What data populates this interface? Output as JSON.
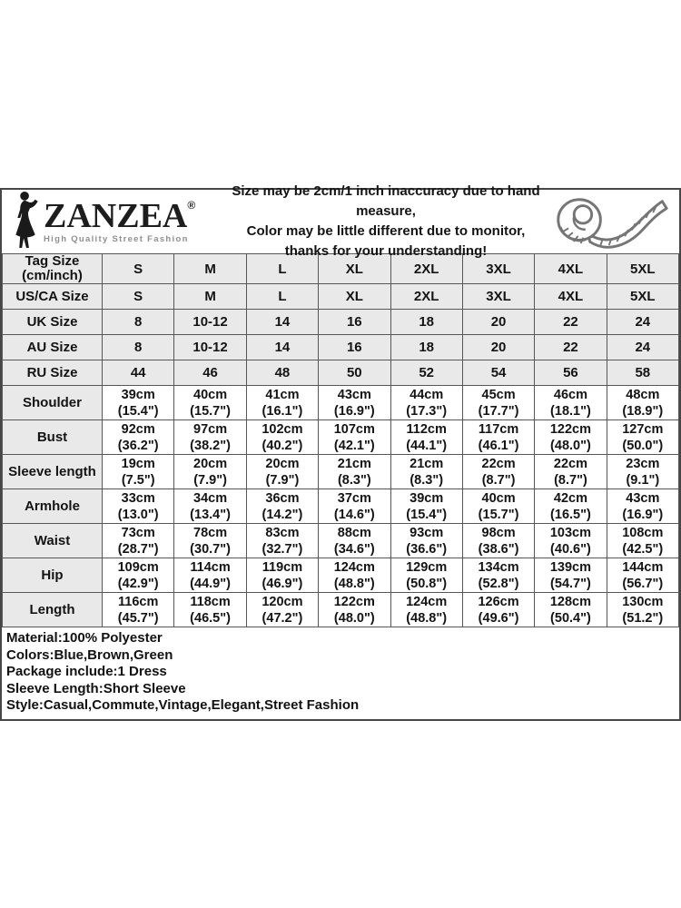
{
  "brand": {
    "name": "ZANZEA",
    "registered": "®",
    "tagline": "High Quality Street Fashion"
  },
  "header": {
    "disclaimer_lines": [
      "Size may be 2cm/1 inch inaccuracy due to hand measure,",
      "Color may be little different due to monitor,",
      "thanks for your understanding!"
    ]
  },
  "icons": {
    "logo_figure": "woman-silhouette",
    "header_right": "measuring-tape"
  },
  "table": {
    "size_rows": [
      {
        "label": "Tag Size",
        "label2": "(cm/inch)",
        "values": [
          "S",
          "M",
          "L",
          "XL",
          "2XL",
          "3XL",
          "4XL",
          "5XL"
        ]
      },
      {
        "label": "US/CA Size",
        "values": [
          "S",
          "M",
          "L",
          "XL",
          "2XL",
          "3XL",
          "4XL",
          "5XL"
        ]
      },
      {
        "label": "UK Size",
        "values": [
          "8",
          "10-12",
          "14",
          "16",
          "18",
          "20",
          "22",
          "24"
        ]
      },
      {
        "label": "AU Size",
        "values": [
          "8",
          "10-12",
          "14",
          "16",
          "18",
          "20",
          "22",
          "24"
        ]
      },
      {
        "label": "RU Size",
        "values": [
          "44",
          "46",
          "48",
          "50",
          "52",
          "54",
          "56",
          "58"
        ]
      }
    ],
    "measure_rows": [
      {
        "label": "Shoulder",
        "cm": [
          "39cm",
          "40cm",
          "41cm",
          "43cm",
          "44cm",
          "45cm",
          "46cm",
          "48cm"
        ],
        "inch": [
          "(15.4\")",
          "(15.7\")",
          "(16.1\")",
          "(16.9\")",
          "(17.3\")",
          "(17.7\")",
          "(18.1\")",
          "(18.9\")"
        ]
      },
      {
        "label": "Bust",
        "cm": [
          "92cm",
          "97cm",
          "102cm",
          "107cm",
          "112cm",
          "117cm",
          "122cm",
          "127cm"
        ],
        "inch": [
          "(36.2\")",
          "(38.2\")",
          "(40.2\")",
          "(42.1\")",
          "(44.1\")",
          "(46.1\")",
          "(48.0\")",
          "(50.0\")"
        ]
      },
      {
        "label": "Sleeve length",
        "cm": [
          "19cm",
          "20cm",
          "20cm",
          "21cm",
          "21cm",
          "22cm",
          "22cm",
          "23cm"
        ],
        "inch": [
          "(7.5\")",
          "(7.9\")",
          "(7.9\")",
          "(8.3\")",
          "(8.3\")",
          "(8.7\")",
          "(8.7\")",
          "(9.1\")"
        ]
      },
      {
        "label": "Armhole",
        "cm": [
          "33cm",
          "34cm",
          "36cm",
          "37cm",
          "39cm",
          "40cm",
          "42cm",
          "43cm"
        ],
        "inch": [
          "(13.0\")",
          "(13.4\")",
          "(14.2\")",
          "(14.6\")",
          "(15.4\")",
          "(15.7\")",
          "(16.5\")",
          "(16.9\")"
        ]
      },
      {
        "label": "Waist",
        "cm": [
          "73cm",
          "78cm",
          "83cm",
          "88cm",
          "93cm",
          "98cm",
          "103cm",
          "108cm"
        ],
        "inch": [
          "(28.7\")",
          "(30.7\")",
          "(32.7\")",
          "(34.6\")",
          "(36.6\")",
          "(38.6\")",
          "(40.6\")",
          "(42.5\")"
        ]
      },
      {
        "label": "Hip",
        "cm": [
          "109cm",
          "114cm",
          "119cm",
          "124cm",
          "129cm",
          "134cm",
          "139cm",
          "144cm"
        ],
        "inch": [
          "(42.9\")",
          "(44.9\")",
          "(46.9\")",
          "(48.8\")",
          "(50.8\")",
          "(52.8\")",
          "(54.7\")",
          "(56.7\")"
        ]
      },
      {
        "label": "Length",
        "cm": [
          "116cm",
          "118cm",
          "120cm",
          "122cm",
          "124cm",
          "126cm",
          "128cm",
          "130cm"
        ],
        "inch": [
          "(45.7\")",
          "(46.5\")",
          "(47.2\")",
          "(48.0\")",
          "(48.8\")",
          "(49.6\")",
          "(50.4\")",
          "(51.2\")"
        ]
      }
    ]
  },
  "footer": {
    "lines": [
      "Material:100% Polyester",
      "Colors:Blue,Brown,Green",
      "Package include:1 Dress",
      "Sleeve Length:Short Sleeve",
      "Style:Casual,Commute,Vintage,Elegant,Street Fashion"
    ]
  },
  "colors": {
    "cell_gray": "#e9e9e9",
    "table_border": "#575757",
    "text": "#141414",
    "tape_stroke": "#757575"
  }
}
